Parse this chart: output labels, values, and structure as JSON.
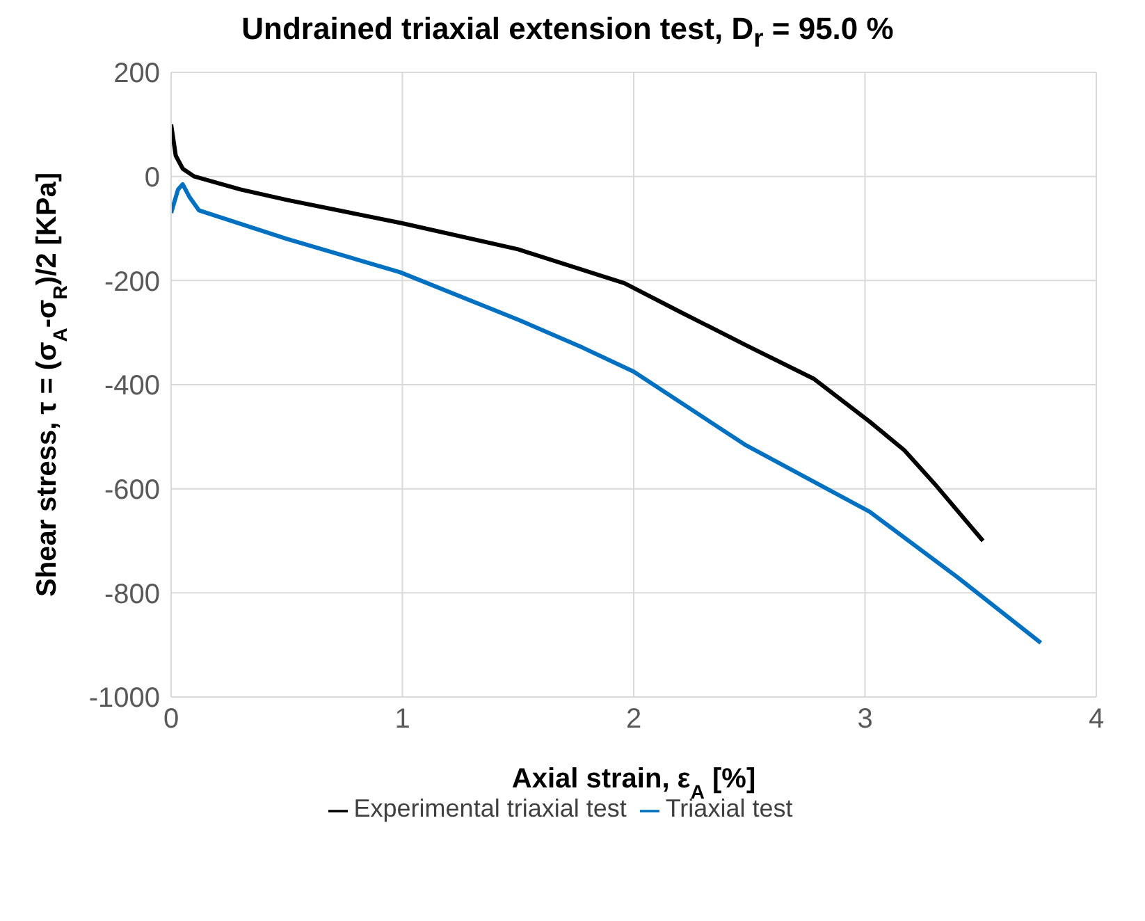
{
  "chart_data": {
    "type": "line",
    "title": "Undrained triaxial extension test, D$_{r}$ = 95.0 %",
    "xlabel": "Axial strain, ε$_{A}$ [%]",
    "ylabel": "Shear stress, τ = (σ$_{A}$-σ$_{R}$)/2 [KPa]",
    "xlim": [
      0,
      4
    ],
    "xticks": [
      0,
      1,
      2,
      3,
      4
    ],
    "ylim": [
      -1000,
      200
    ],
    "yticks": [
      -1000,
      -800,
      -600,
      -400,
      -200,
      0,
      200
    ],
    "grid": true,
    "legend": "bottom",
    "marker": "none",
    "line_style": "solid",
    "series": [
      {
        "name": "Experimental triaxial test",
        "color": "#000000",
        "x": [
          0,
          0.02,
          0.05,
          0.1,
          0.3,
          0.5,
          1,
          1.5,
          1.96,
          2.2,
          2.48,
          2.78,
          3.02,
          3.17,
          3.3,
          3.51
        ],
        "values": [
          100,
          40,
          15,
          0,
          -25,
          -45,
          -90,
          -140,
          -205,
          -260,
          -323,
          -389,
          -471,
          -526,
          -590,
          -700
        ]
      },
      {
        "name": "Triaxial test",
        "color": "#0070c0",
        "x": [
          0,
          0.03,
          0.05,
          0.08,
          0.12,
          0.5,
          0.99,
          1.5,
          1.78,
          2,
          2.48,
          3.02,
          3.4,
          3.76
        ],
        "values": [
          -70,
          -25,
          -15,
          -40,
          -65,
          -120,
          -184,
          -275,
          -329,
          -375,
          -515,
          -644,
          -770,
          -896
        ]
      }
    ]
  }
}
